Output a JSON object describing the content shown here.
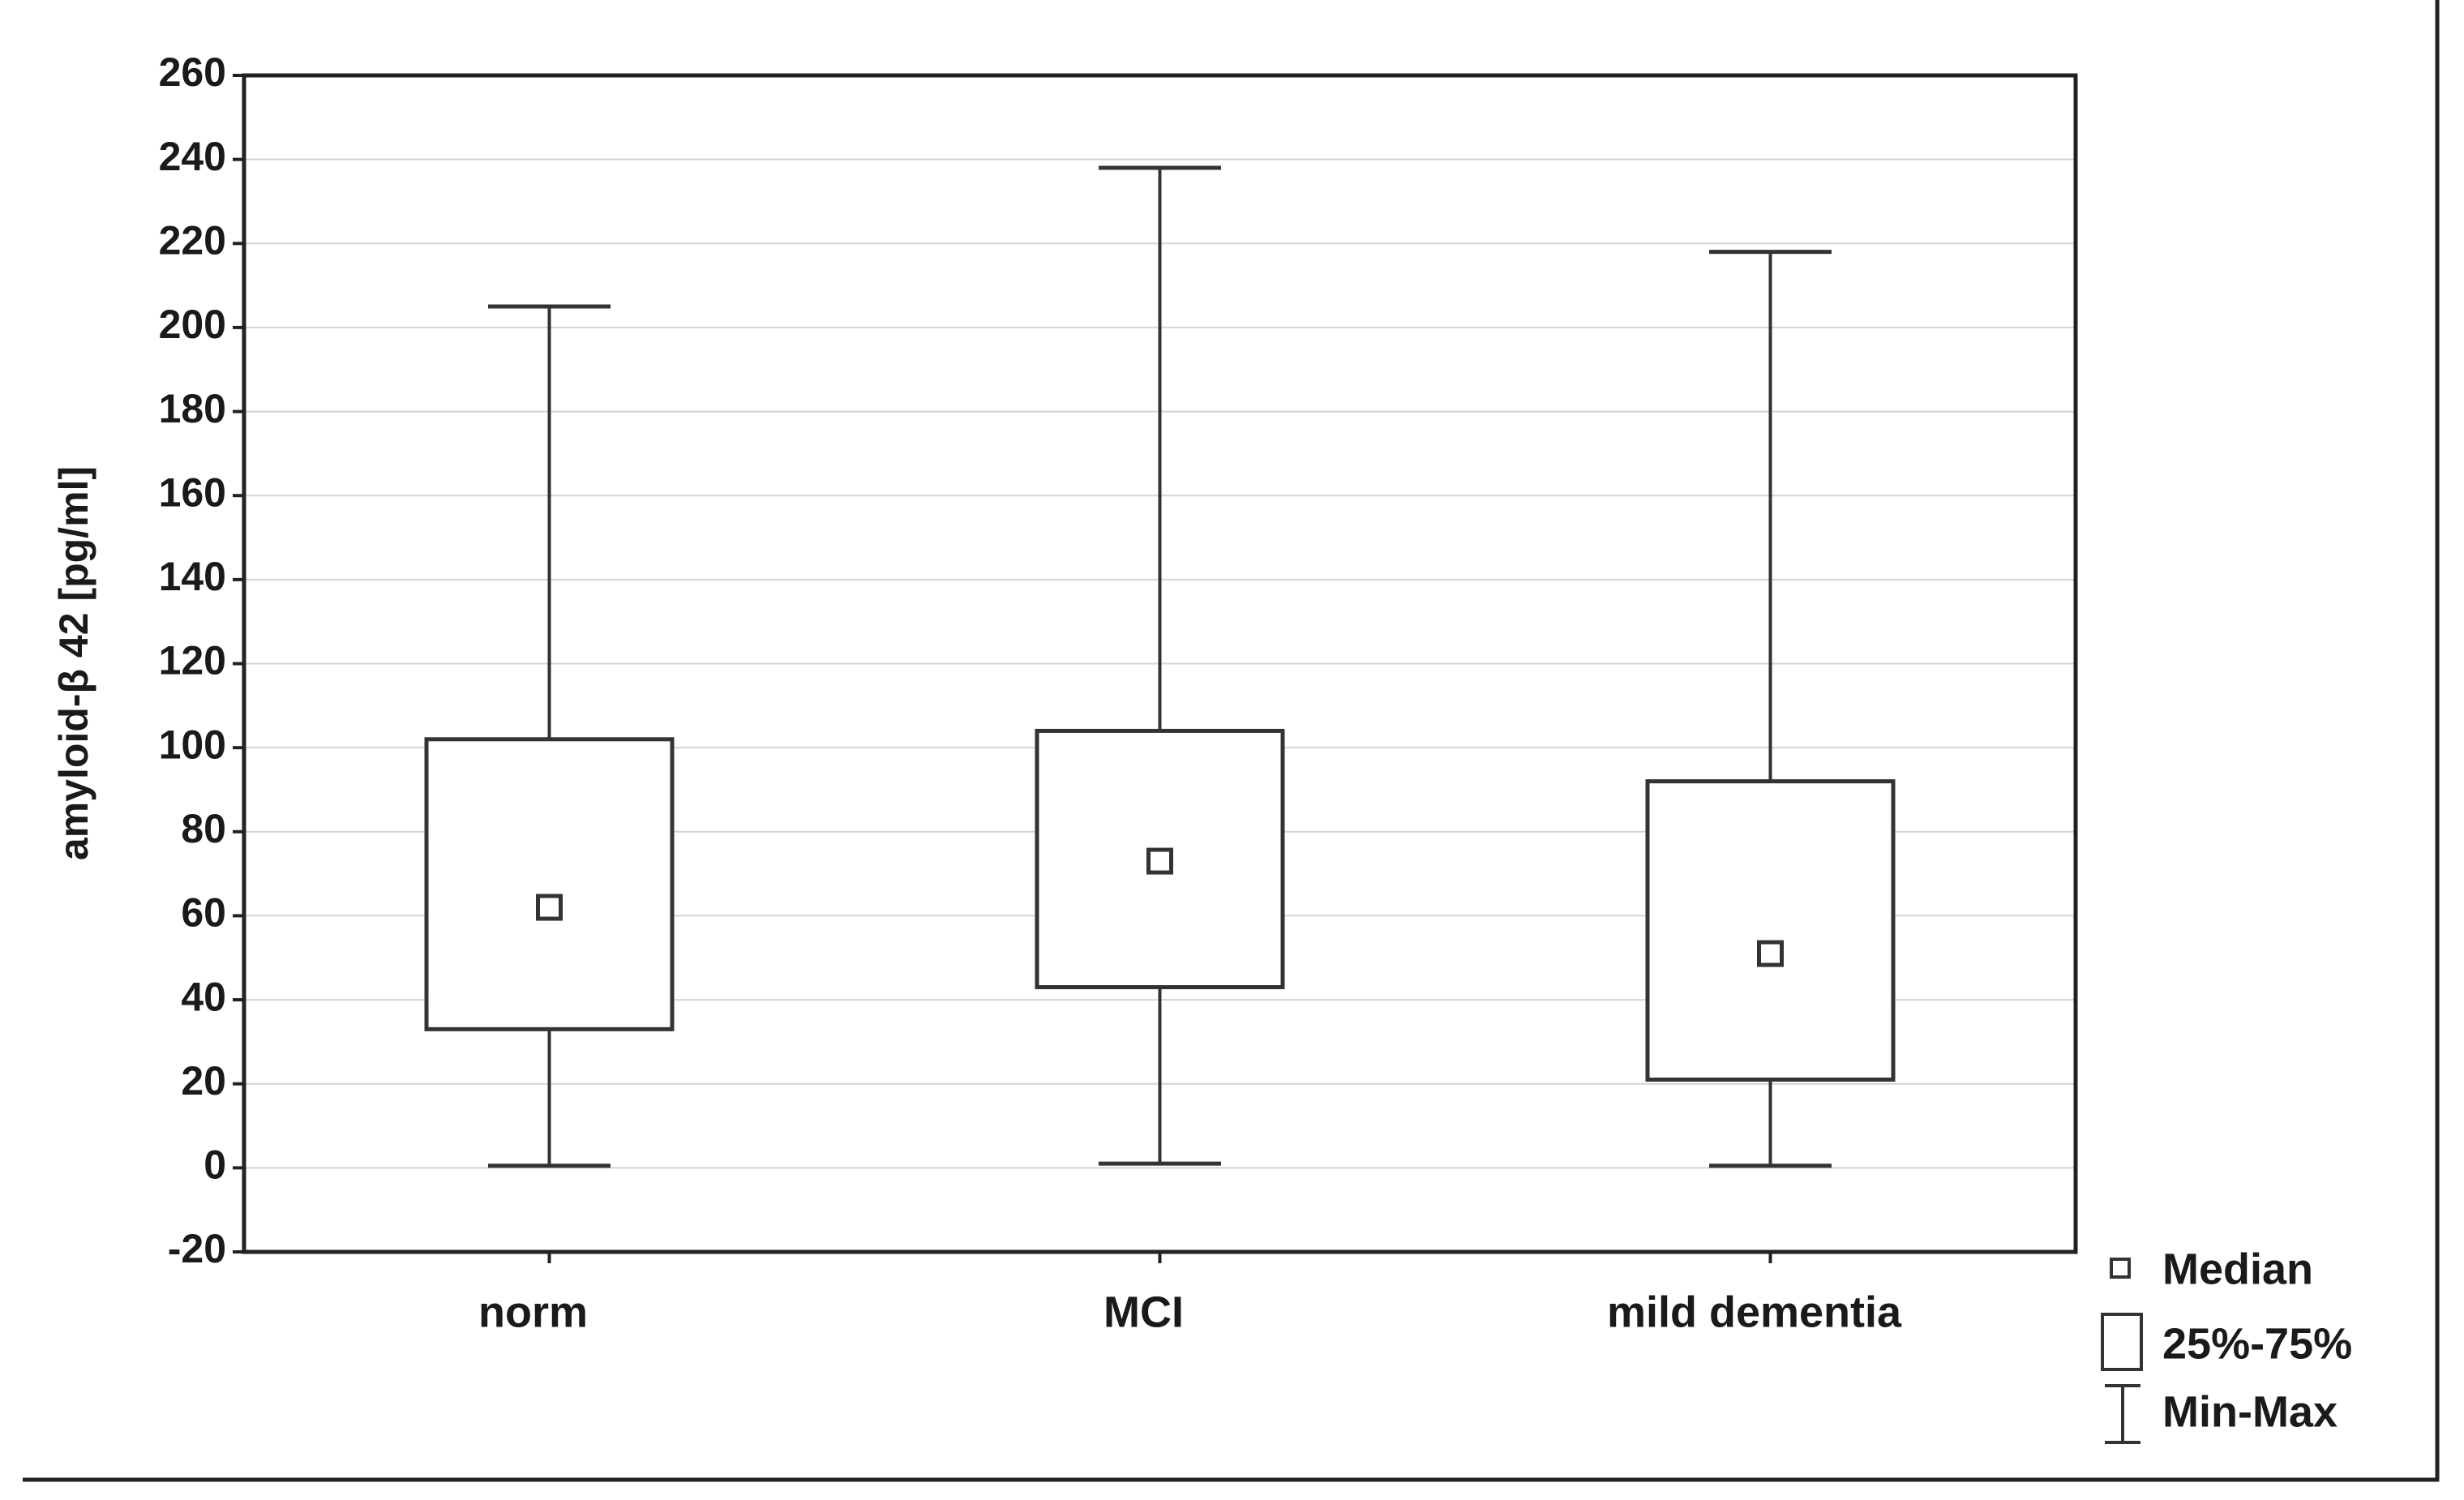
{
  "chart_data": {
    "type": "box",
    "ylabel": "amyloid-β 42 [pg/ml]",
    "categories": [
      "norm",
      "MCI",
      "mild dementia"
    ],
    "min": [
      0.5,
      1,
      0.5
    ],
    "q1": [
      33,
      43,
      21
    ],
    "median": [
      62,
      73,
      51
    ],
    "q3": [
      102,
      104,
      92
    ],
    "max": [
      205,
      238,
      218
    ],
    "ylim": [
      -20,
      260
    ],
    "yticks": [
      -20,
      0,
      20,
      40,
      60,
      80,
      100,
      120,
      140,
      160,
      180,
      200,
      220,
      240,
      260
    ],
    "grid": true,
    "legend": [
      "Median",
      "25%-75%",
      "Min-Max"
    ],
    "color": "#333333"
  }
}
